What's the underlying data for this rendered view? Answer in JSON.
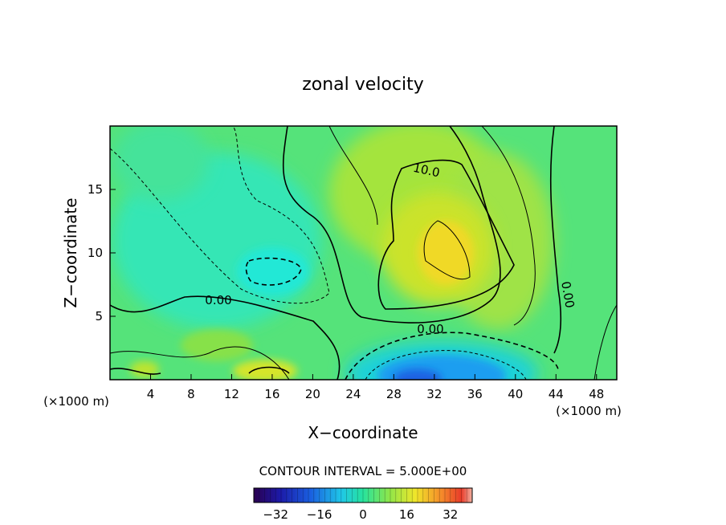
{
  "chart_data": {
    "type": "heatmap",
    "title": "zonal velocity",
    "xlabel": "X−coordinate",
    "ylabel": "Z−coordinate",
    "x_unit": "(×1000 m)",
    "x_unit_right": "(×1000 m)",
    "xlim": [
      0,
      50
    ],
    "ylim": [
      0,
      20
    ],
    "x_ticks": [
      4,
      8,
      12,
      16,
      20,
      24,
      28,
      32,
      36,
      40,
      44,
      48
    ],
    "y_ticks": [
      5,
      10,
      15
    ],
    "contour_interval_text": "CONTOUR INTERVAL = 5.000E+00",
    "contour_labels": [
      "10.0",
      "0.00",
      "0.00",
      "0.00"
    ],
    "colorbar": {
      "range": [
        -40,
        40
      ],
      "ticks": [
        "−32",
        "−16",
        "0",
        "16",
        "32"
      ],
      "tick_values": [
        -32,
        -16,
        0,
        16,
        32
      ]
    },
    "features": [
      {
        "x": 33,
        "z": 10,
        "value": 20
      },
      {
        "x": 11,
        "z": 9,
        "value": -6
      },
      {
        "x": 32,
        "z": 1.5,
        "value": -22
      }
    ]
  }
}
